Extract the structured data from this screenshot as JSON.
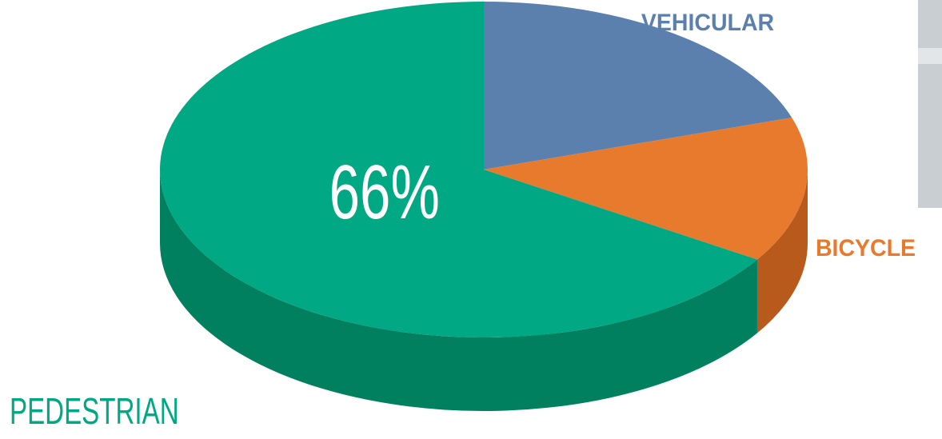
{
  "chart_data": {
    "type": "pie",
    "categories": [
      "VEHICULAR",
      "BICYCLE",
      "PEDESTRIAN"
    ],
    "values": [
      20,
      14,
      66
    ],
    "value_labels": [
      null,
      null,
      "66%"
    ],
    "colors": [
      "#5b80ad",
      "#e87a2e",
      "#00a884"
    ],
    "side_colors": [
      "#44668f",
      "#b85a1c",
      "#00805f"
    ]
  }
}
